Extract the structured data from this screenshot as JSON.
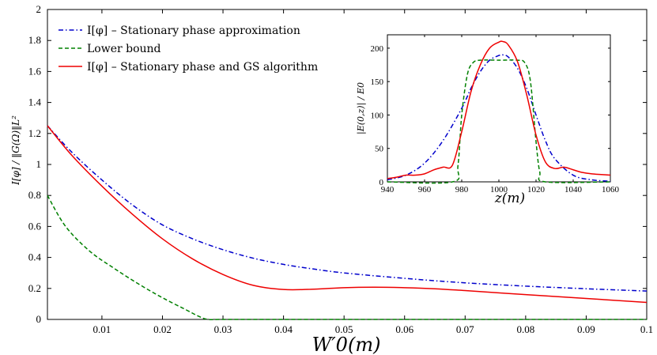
{
  "chart_data": [
    {
      "type": "line",
      "xlabel": "W′0(m)",
      "ylabel": "I[φ] / ‖G(Ω)‖L²",
      "xlim": [
        0.001,
        0.1
      ],
      "ylim": [
        0,
        2
      ],
      "x_ticks": [
        0.01,
        0.02,
        0.03,
        0.04,
        0.05,
        0.06,
        0.07,
        0.08,
        0.09,
        0.1
      ],
      "x_tick_labels": [
        "0.01",
        "0.02",
        "0.03",
        "0.04",
        "0.05",
        "0.06",
        "0.07",
        "0.08",
        "0.09",
        "0.1"
      ],
      "y_ticks": [
        0,
        0.2,
        0.4,
        0.6,
        0.8,
        1,
        1.2,
        1.4,
        1.6,
        1.8,
        2
      ],
      "y_tick_labels": [
        "0",
        "0.2",
        "0.4",
        "0.6",
        "0.8",
        "1",
        "1.2",
        "1.4",
        "1.6",
        "1.8",
        "2"
      ],
      "legend_position": "top-left",
      "series": [
        {
          "name": "I[φ] – Stationary phase approximation",
          "color": "#0000cc",
          "style": "dashdot",
          "x": [
            0.001,
            0.005,
            0.01,
            0.015,
            0.02,
            0.025,
            0.03,
            0.035,
            0.04,
            0.045,
            0.05,
            0.06,
            0.07,
            0.08,
            0.09,
            0.1
          ],
          "y": [
            1.25,
            1.08,
            0.9,
            0.74,
            0.61,
            0.52,
            0.45,
            0.395,
            0.355,
            0.325,
            0.3,
            0.265,
            0.236,
            0.215,
            0.198,
            0.183
          ]
        },
        {
          "name": "Lower bound",
          "color": "#008000",
          "style": "dashed",
          "x": [
            0.001,
            0.004,
            0.008,
            0.012,
            0.016,
            0.02,
            0.024,
            0.026,
            0.0275,
            0.03,
            0.04,
            0.06,
            0.08,
            0.1
          ],
          "y": [
            0.8,
            0.6,
            0.44,
            0.33,
            0.23,
            0.14,
            0.06,
            0.02,
            0.0,
            0.0,
            0.0,
            0.0,
            0.0,
            0.0
          ]
        },
        {
          "name": "I[φ] – Stationary phase and GS algorithm",
          "color": "#ee0000",
          "style": "solid",
          "x": [
            0.001,
            0.005,
            0.01,
            0.015,
            0.02,
            0.025,
            0.03,
            0.035,
            0.04,
            0.045,
            0.05,
            0.055,
            0.06,
            0.065,
            0.07,
            0.08,
            0.09,
            0.1
          ],
          "y": [
            1.25,
            1.06,
            0.86,
            0.68,
            0.52,
            0.39,
            0.29,
            0.22,
            0.193,
            0.195,
            0.205,
            0.208,
            0.205,
            0.198,
            0.186,
            0.16,
            0.135,
            0.11
          ]
        }
      ]
    },
    {
      "type": "line",
      "xlabel": "z(m)",
      "ylabel": "|E(0,z)| / E0",
      "xlim": [
        940,
        1060
      ],
      "ylim": [
        0,
        220
      ],
      "x_ticks": [
        940,
        960,
        980,
        1000,
        1020,
        1040,
        1060
      ],
      "x_tick_labels": [
        "940",
        "960",
        "980",
        "1000",
        "1020",
        "1040",
        "1060"
      ],
      "y_ticks": [
        0,
        50,
        100,
        150,
        200
      ],
      "y_tick_labels": [
        "0",
        "50",
        "100",
        "150",
        "200"
      ],
      "series": [
        {
          "name": "Stationary phase approximation",
          "color": "#0000cc",
          "style": "dashdot",
          "x": [
            940,
            950,
            960,
            970,
            980,
            985,
            990,
            995,
            1000,
            1002,
            1005,
            1010,
            1015,
            1020,
            1025,
            1030,
            1040,
            1050,
            1060
          ],
          "y": [
            3,
            10,
            28,
            62,
            110,
            140,
            165,
            182,
            189,
            190,
            187,
            170,
            140,
            100,
            62,
            35,
            10,
            3,
            1
          ]
        },
        {
          "name": "Lower bound",
          "color": "#008000",
          "style": "dashed",
          "x": [
            940,
            975,
            978,
            980,
            983,
            986,
            990,
            1000,
            1010,
            1014,
            1017,
            1020,
            1022,
            1025,
            1060
          ],
          "y": [
            0,
            0,
            25,
            100,
            160,
            178,
            182,
            182,
            182,
            178,
            150,
            60,
            15,
            0,
            0
          ]
        },
        {
          "name": "Stationary phase and GS algorithm",
          "color": "#ee0000",
          "style": "solid",
          "x": [
            940,
            945,
            950,
            955,
            960,
            965,
            970,
            975,
            980,
            985,
            990,
            995,
            1000,
            1002,
            1005,
            1010,
            1015,
            1020,
            1025,
            1030,
            1035,
            1040,
            1045,
            1050,
            1055,
            1060
          ],
          "y": [
            5,
            7,
            10,
            10,
            12,
            18,
            22,
            25,
            75,
            135,
            175,
            200,
            209,
            210,
            205,
            180,
            130,
            70,
            30,
            20,
            22,
            18,
            14,
            12,
            11,
            10
          ]
        }
      ]
    }
  ]
}
